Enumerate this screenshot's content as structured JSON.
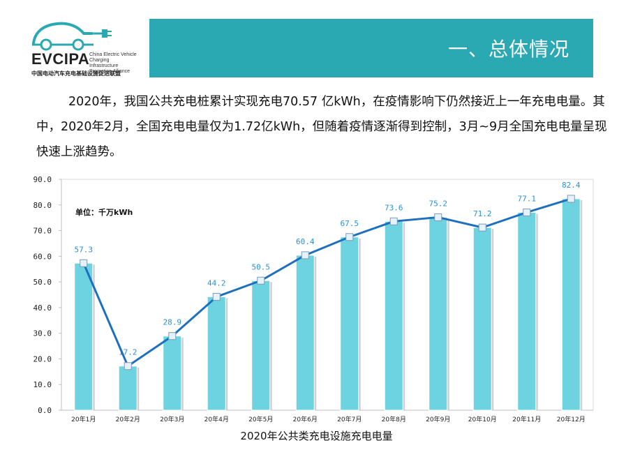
{
  "logo": {
    "name": "EVCIPA",
    "subtitle": "China Electric Vehicle Charging Infrastructure Promotion Alliance",
    "cn_name": "中国电动汽车充电基础设施促进联盟"
  },
  "header": {
    "title": "一、总体情况"
  },
  "paragraph": "2020年，我国公共充电桩累计实现充电70.57 亿kWh，在疫情影响下仍然接近上一年充电电量。其中，2020年2月，全国充电电量仅为1.72亿kWh，但随着疫情逐渐得到控制，3月~9月全国充电电量呈现快速上涨趋势。",
  "colors": {
    "accent": "#2aa9b3",
    "bar": "#6dd3e0",
    "line": "#1f6fbf",
    "label": "#2a8fd6"
  },
  "chart_data": {
    "type": "bar",
    "title": "2020年公共类充电设施充电电量",
    "unit_label": "单位：千万kWh",
    "categories": [
      "20年1月",
      "20年2月",
      "20年3月",
      "20年4月",
      "20年5月",
      "20年6月",
      "20年7月",
      "20年8月",
      "20年9月",
      "20年10月",
      "20年11月",
      "20年12月"
    ],
    "values": [
      57.3,
      17.2,
      28.9,
      44.2,
      50.5,
      60.4,
      67.5,
      73.6,
      75.2,
      71.2,
      77.1,
      82.4
    ],
    "value_labels": [
      "57.3",
      "17.2",
      "28.9",
      "44.2",
      "50.5",
      "60.4",
      "67.5",
      "73.6",
      "75.2",
      "71.2",
      "77.1",
      "82.4"
    ],
    "overlay": "line",
    "ylim": [
      0,
      90
    ],
    "yticks": [
      "0.0",
      "10.0",
      "20.0",
      "30.0",
      "40.0",
      "50.0",
      "60.0",
      "70.0",
      "80.0",
      "90.0"
    ],
    "grid": false,
    "legend": "none"
  }
}
